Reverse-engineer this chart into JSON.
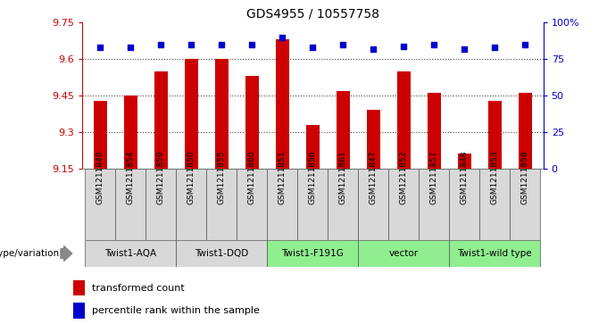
{
  "title": "GDS4955 / 10557758",
  "samples": [
    "GSM1211849",
    "GSM1211854",
    "GSM1211859",
    "GSM1211850",
    "GSM1211855",
    "GSM1211860",
    "GSM1211851",
    "GSM1211856",
    "GSM1211861",
    "GSM1211847",
    "GSM1211852",
    "GSM1211857",
    "GSM1211848",
    "GSM1211853",
    "GSM1211858"
  ],
  "bar_values": [
    9.43,
    9.45,
    9.55,
    9.6,
    9.6,
    9.53,
    9.68,
    9.33,
    9.47,
    9.39,
    9.55,
    9.46,
    9.21,
    9.43,
    9.46
  ],
  "percentile_values": [
    83,
    83,
    85,
    85,
    85,
    85,
    90,
    83,
    85,
    82,
    84,
    85,
    82,
    83,
    85
  ],
  "y_min": 9.15,
  "y_max": 9.75,
  "y_ticks": [
    9.15,
    9.3,
    9.45,
    9.6,
    9.75
  ],
  "y2_ticks": [
    0,
    25,
    50,
    75,
    100
  ],
  "y2_tick_labels": [
    "0",
    "25",
    "50",
    "75",
    "100%"
  ],
  "groups": [
    {
      "label": "Twist1-AQA",
      "start": 0,
      "end": 3,
      "color": "#d8d8d8"
    },
    {
      "label": "Twist1-DQD",
      "start": 3,
      "end": 6,
      "color": "#d8d8d8"
    },
    {
      "label": "Twist1-F191G",
      "start": 6,
      "end": 9,
      "color": "#90ee90"
    },
    {
      "label": "vector",
      "start": 9,
      "end": 12,
      "color": "#90ee90"
    },
    {
      "label": "Twist1-wild type",
      "start": 12,
      "end": 15,
      "color": "#90ee90"
    }
  ],
  "sample_box_color": "#d8d8d8",
  "bar_color": "#cc0000",
  "dot_color": "#0000cc",
  "bar_width": 0.45,
  "background_color": "#ffffff",
  "grid_color": "#444444",
  "legend_label_bar": "transformed count",
  "legend_label_dot": "percentile rank within the sample",
  "genotype_label": "genotype/variation"
}
